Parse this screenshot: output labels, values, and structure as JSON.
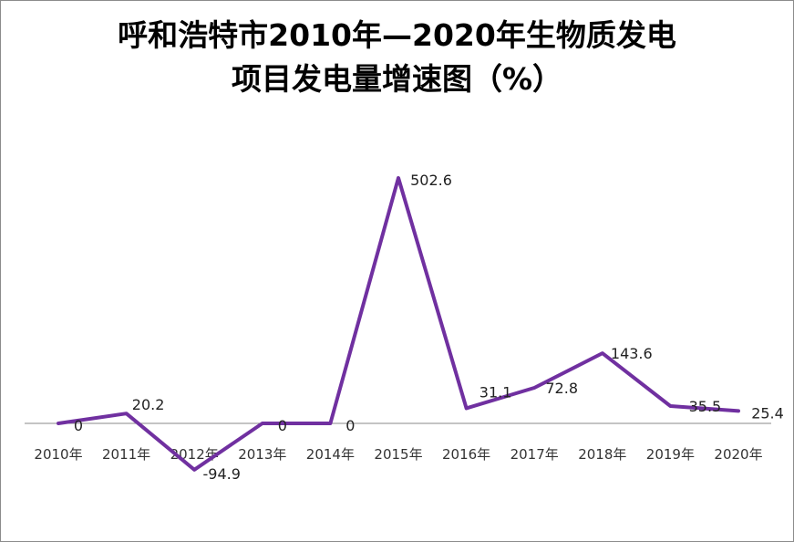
{
  "chart_data": {
    "type": "line",
    "title_lines": [
      "呼和浩特市2010年—2020年生物质发电",
      "项目发电量增速图（%）"
    ],
    "categories": [
      "2010年",
      "2011年",
      "2012年",
      "2013年",
      "2014年",
      "2015年",
      "2016年",
      "2017年",
      "2018年",
      "2019年",
      "2020年"
    ],
    "series": [
      {
        "name": "",
        "values": [
          0,
          20.2,
          -94.9,
          0,
          0,
          502.6,
          31.1,
          72.8,
          143.6,
          35.5,
          25.4
        ]
      }
    ],
    "data_labels": [
      "0",
      "20.2",
      "-94.9",
      "0",
      "0",
      "502.6",
      "31.1",
      "72.8",
      "143.6",
      "35.5",
      "25.4"
    ],
    "xlabel": "",
    "ylabel": "",
    "ylim": [
      -100,
      502.6
    ],
    "grid": false,
    "legend": "none",
    "line_color": "#7030a0",
    "axis_color": "#888888"
  }
}
